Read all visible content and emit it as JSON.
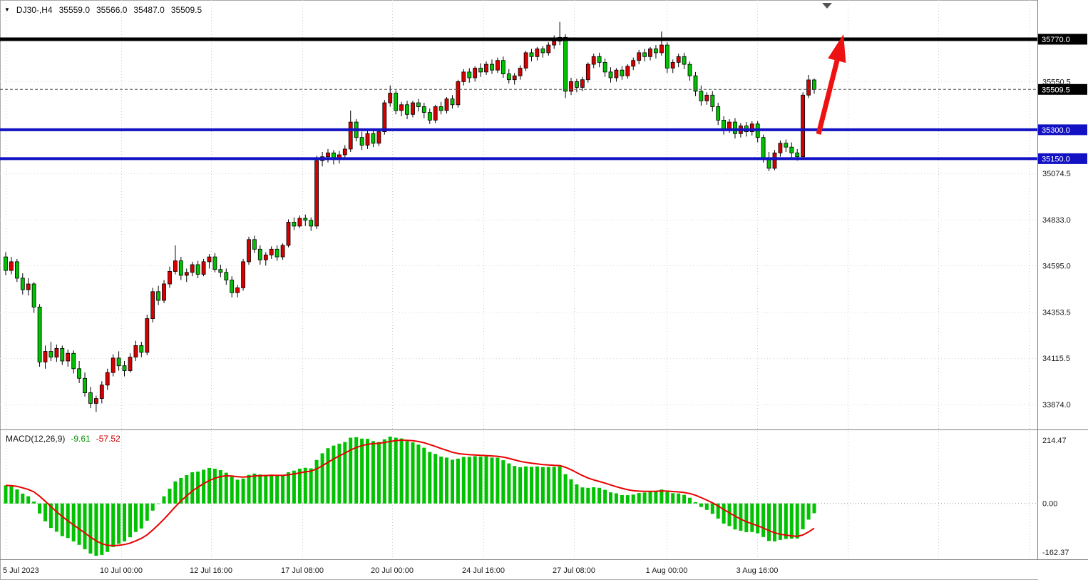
{
  "window": {
    "symbol_period": "DJ30-,H4",
    "open": "35559.0",
    "high": "35566.0",
    "low": "35487.0",
    "close": "35509.5"
  },
  "colors": {
    "bull": "#d60000",
    "bear": "#00c200",
    "grid": "#cccccc",
    "level_black": "#000000",
    "level_blue": "#1212c4",
    "arrow": "#ee1111",
    "macd_hist": "#00c200",
    "macd_signal": "#e80000",
    "badge_current_bg": "#000000"
  },
  "chart_data": {
    "type": "candlestick",
    "symbol": "DJ30-",
    "timeframe": "H4",
    "last_candle": {
      "open": 35559.0,
      "high": 35566.0,
      "low": 35487.0,
      "close": 35509.5
    },
    "y_axis_ticks": [
      "35550.5",
      "35074.5",
      "34833.0",
      "34595.0",
      "34353.5",
      "34115.5",
      "33874.0"
    ],
    "x_axis_labels": [
      "5 Jul 2023",
      "10 Jul 00:00",
      "12 Jul 16:00",
      "17 Jul 08:00",
      "20 Jul 00:00",
      "24 Jul 16:00",
      "27 Jul 08:00",
      "1 Aug 00:00",
      "3 Aug 16:00"
    ],
    "levels": [
      {
        "price": 35770.0,
        "label": "35770.0",
        "color": "#000000",
        "width": 5,
        "role": "resistance"
      },
      {
        "price": 35300.0,
        "label": "35300.0",
        "color": "#1212c4",
        "width": 4,
        "role": "support"
      },
      {
        "price": 35150.0,
        "label": "35150.0",
        "color": "#1212c4",
        "width": 4,
        "role": "support"
      }
    ],
    "current_price": {
      "value": 35509.5,
      "label": "35509.5"
    },
    "annotation": {
      "type": "arrow-up",
      "color": "#ee1111"
    },
    "candles_ohlc": [
      [
        34640,
        34665,
        34545,
        34570
      ],
      [
        34570,
        34640,
        34550,
        34615
      ],
      [
        34615,
        34630,
        34510,
        34530
      ],
      [
        34530,
        34555,
        34445,
        34470
      ],
      [
        34470,
        34530,
        34440,
        34500
      ],
      [
        34500,
        34510,
        34350,
        34380
      ],
      [
        34380,
        34395,
        34070,
        34095
      ],
      [
        34095,
        34180,
        34060,
        34150
      ],
      [
        34150,
        34200,
        34100,
        34120
      ],
      [
        34120,
        34185,
        34095,
        34165
      ],
      [
        34165,
        34180,
        34080,
        34100
      ],
      [
        34100,
        34160,
        34070,
        34140
      ],
      [
        34140,
        34155,
        34035,
        34060
      ],
      [
        34060,
        34100,
        33985,
        34010
      ],
      [
        34010,
        34040,
        33915,
        33935
      ],
      [
        33935,
        33965,
        33855,
        33880
      ],
      [
        33880,
        33920,
        33835,
        33905
      ],
      [
        33905,
        33995,
        33880,
        33975
      ],
      [
        33975,
        34060,
        33950,
        34040
      ],
      [
        34040,
        34135,
        34020,
        34115
      ],
      [
        34115,
        34150,
        34050,
        34075
      ],
      [
        34075,
        34100,
        34020,
        34050
      ],
      [
        34050,
        34140,
        34040,
        34120
      ],
      [
        34120,
        34205,
        34100,
        34180
      ],
      [
        34180,
        34200,
        34120,
        34145
      ],
      [
        34145,
        34340,
        34130,
        34320
      ],
      [
        34320,
        34480,
        34300,
        34460
      ],
      [
        34460,
        34490,
        34390,
        34415
      ],
      [
        34415,
        34520,
        34400,
        34500
      ],
      [
        34500,
        34590,
        34480,
        34565
      ],
      [
        34565,
        34700,
        34550,
        34620
      ],
      [
        34620,
        34640,
        34520,
        34545
      ],
      [
        34545,
        34580,
        34510,
        34560
      ],
      [
        34560,
        34615,
        34540,
        34600
      ],
      [
        34600,
        34620,
        34530,
        34550
      ],
      [
        34550,
        34630,
        34540,
        34615
      ],
      [
        34615,
        34655,
        34580,
        34640
      ],
      [
        34640,
        34660,
        34560,
        34575
      ],
      [
        34575,
        34600,
        34535,
        34560
      ],
      [
        34560,
        34580,
        34495,
        34520
      ],
      [
        34520,
        34540,
        34430,
        34455
      ],
      [
        34455,
        34495,
        34430,
        34480
      ],
      [
        34480,
        34630,
        34465,
        34615
      ],
      [
        34615,
        34745,
        34600,
        34730
      ],
      [
        34730,
        34750,
        34660,
        34680
      ],
      [
        34680,
        34700,
        34600,
        34625
      ],
      [
        34625,
        34665,
        34595,
        34650
      ],
      [
        34650,
        34695,
        34630,
        34680
      ],
      [
        34680,
        34700,
        34620,
        34640
      ],
      [
        34640,
        34710,
        34625,
        34700
      ],
      [
        34700,
        34835,
        34690,
        34820
      ],
      [
        34820,
        34845,
        34780,
        34800
      ],
      [
        34800,
        34855,
        34790,
        34840
      ],
      [
        34840,
        34860,
        34800,
        34830
      ],
      [
        34830,
        34845,
        34775,
        34800
      ],
      [
        34800,
        35165,
        34785,
        35140
      ],
      [
        35140,
        35185,
        35110,
        35160
      ],
      [
        35160,
        35200,
        35130,
        35180
      ],
      [
        35180,
        35195,
        35120,
        35150
      ],
      [
        35150,
        35190,
        35125,
        35170
      ],
      [
        35170,
        35220,
        35150,
        35200
      ],
      [
        35200,
        35400,
        35185,
        35340
      ],
      [
        35340,
        35355,
        35240,
        35260
      ],
      [
        35260,
        35290,
        35195,
        35220
      ],
      [
        35220,
        35295,
        35200,
        35280
      ],
      [
        35280,
        35300,
        35210,
        35230
      ],
      [
        35230,
        35300,
        35215,
        35290
      ],
      [
        35290,
        35455,
        35275,
        35440
      ],
      [
        35440,
        35530,
        35420,
        35490
      ],
      [
        35490,
        35505,
        35380,
        35400
      ],
      [
        35400,
        35445,
        35370,
        35430
      ],
      [
        35430,
        35450,
        35355,
        35380
      ],
      [
        35380,
        35450,
        35365,
        35440
      ],
      [
        35440,
        35460,
        35395,
        35420
      ],
      [
        35420,
        35440,
        35360,
        35390
      ],
      [
        35390,
        35410,
        35330,
        35350
      ],
      [
        35350,
        35430,
        35335,
        35420
      ],
      [
        35420,
        35445,
        35380,
        35400
      ],
      [
        35400,
        35470,
        35385,
        35460
      ],
      [
        35460,
        35480,
        35410,
        35430
      ],
      [
        35430,
        35560,
        35415,
        35550
      ],
      [
        35550,
        35615,
        35530,
        35600
      ],
      [
        35600,
        35620,
        35545,
        35570
      ],
      [
        35570,
        35630,
        35550,
        35620
      ],
      [
        35620,
        35645,
        35575,
        35600
      ],
      [
        35600,
        35655,
        35585,
        35640
      ],
      [
        35640,
        35665,
        35590,
        35610
      ],
      [
        35610,
        35675,
        35595,
        35660
      ],
      [
        35660,
        35680,
        35570,
        35590
      ],
      [
        35590,
        35615,
        35540,
        35560
      ],
      [
        35560,
        35595,
        35535,
        35580
      ],
      [
        35580,
        35635,
        35560,
        35620
      ],
      [
        35620,
        35710,
        35605,
        35700
      ],
      [
        35700,
        35720,
        35655,
        35680
      ],
      [
        35680,
        35730,
        35660,
        35720
      ],
      [
        35720,
        35735,
        35675,
        35700
      ],
      [
        35700,
        35755,
        35685,
        35740
      ],
      [
        35740,
        35790,
        35720,
        35760
      ],
      [
        35760,
        35860,
        35740,
        35780
      ],
      [
        35780,
        35795,
        35465,
        35500
      ],
      [
        35500,
        35570,
        35480,
        35550
      ],
      [
        35550,
        35565,
        35495,
        35520
      ],
      [
        35520,
        35575,
        35500,
        35560
      ],
      [
        35560,
        35650,
        35545,
        35640
      ],
      [
        35640,
        35695,
        35620,
        35680
      ],
      [
        35680,
        35700,
        35625,
        35650
      ],
      [
        35650,
        35670,
        35575,
        35600
      ],
      [
        35600,
        35625,
        35545,
        35570
      ],
      [
        35570,
        35620,
        35550,
        35610
      ],
      [
        35610,
        35630,
        35560,
        35580
      ],
      [
        35580,
        35640,
        35565,
        35630
      ],
      [
        35630,
        35675,
        35610,
        35660
      ],
      [
        35660,
        35715,
        35640,
        35700
      ],
      [
        35700,
        35720,
        35655,
        35680
      ],
      [
        35680,
        35730,
        35660,
        35720
      ],
      [
        35720,
        35740,
        35670,
        35700
      ],
      [
        35700,
        35810,
        35685,
        35740
      ],
      [
        35740,
        35755,
        35595,
        35620
      ],
      [
        35620,
        35665,
        35595,
        35650
      ],
      [
        35650,
        35695,
        35625,
        35680
      ],
      [
        35680,
        35700,
        35615,
        35640
      ],
      [
        35640,
        35655,
        35555,
        35580
      ],
      [
        35580,
        35600,
        35475,
        35500
      ],
      [
        35500,
        35530,
        35425,
        35450
      ],
      [
        35450,
        35495,
        35430,
        35480
      ],
      [
        35480,
        35500,
        35395,
        35420
      ],
      [
        35420,
        35440,
        35325,
        35350
      ],
      [
        35350,
        35370,
        35275,
        35300
      ],
      [
        35300,
        35355,
        35285,
        35340
      ],
      [
        35340,
        35360,
        35255,
        35280
      ],
      [
        35280,
        35335,
        35260,
        35320
      ],
      [
        35320,
        35340,
        35265,
        35290
      ],
      [
        35290,
        35345,
        35270,
        35330
      ],
      [
        35330,
        35345,
        35235,
        35260
      ],
      [
        35260,
        35275,
        35130,
        35150
      ],
      [
        35150,
        35185,
        35085,
        35100
      ],
      [
        35100,
        35195,
        35090,
        35180
      ],
      [
        35180,
        35245,
        35160,
        35230
      ],
      [
        35230,
        35250,
        35185,
        35210
      ],
      [
        35210,
        35235,
        35155,
        35180
      ],
      [
        35180,
        35200,
        35140,
        35160
      ],
      [
        35160,
        35495,
        35150,
        35480
      ],
      [
        35480,
        35585,
        35465,
        35559
      ],
      [
        35559,
        35566,
        35487,
        35509.5
      ]
    ],
    "macd": {
      "label": "MACD(12,26,9)",
      "main_value": "-9.61",
      "signal_value": "-57.52",
      "params": [
        12,
        26,
        9
      ],
      "axis_max": "214.47",
      "axis_zero": "0.00",
      "axis_min": "-162.37"
    }
  }
}
